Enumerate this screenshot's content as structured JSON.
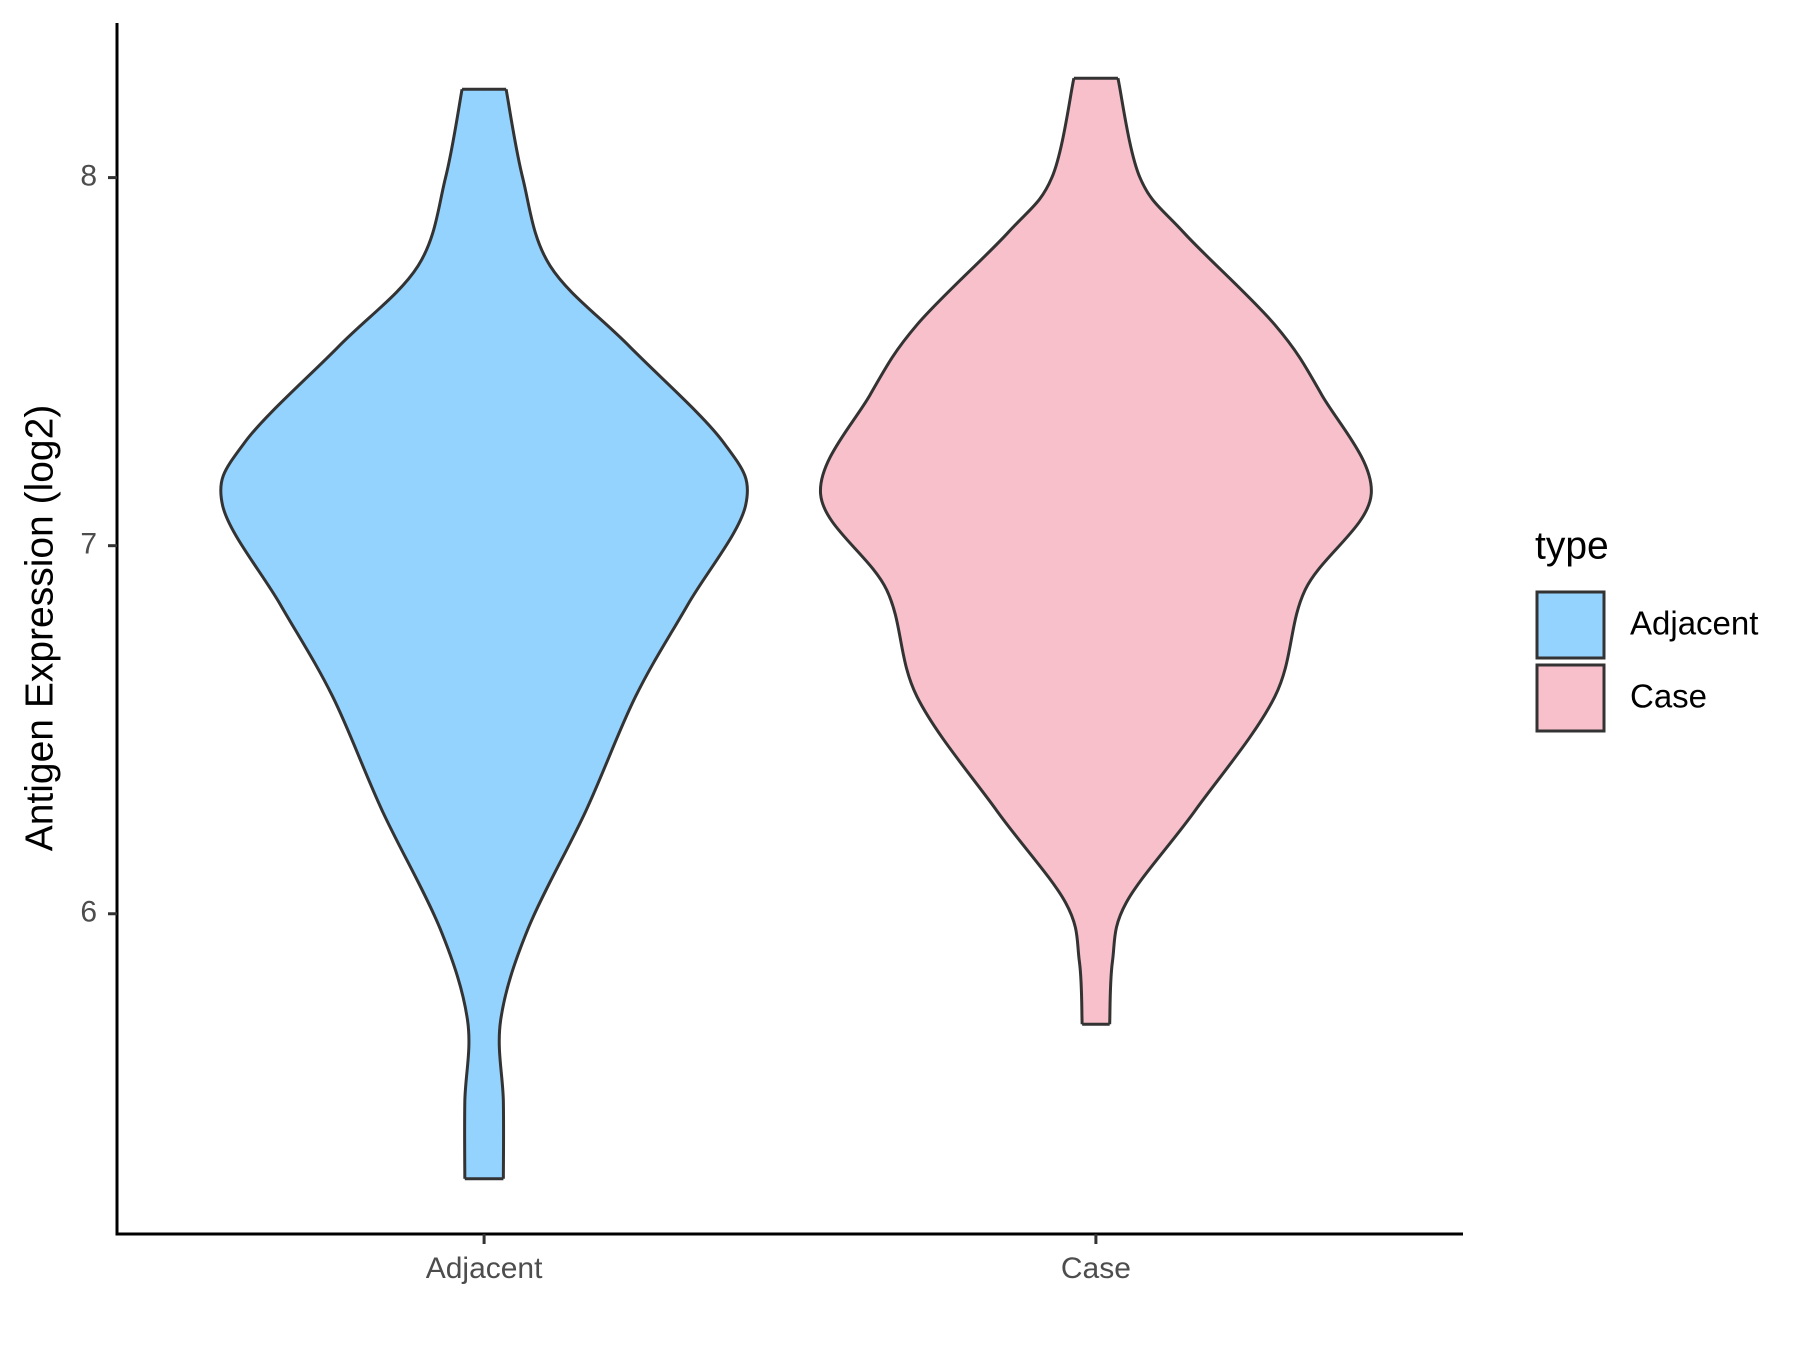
{
  "chart_data": {
    "type": "violin",
    "y_label": "Antigen Expression (log2)",
    "categories": [
      "Adjacent",
      "Case"
    ],
    "legend_title": "type",
    "series": [
      {
        "name": "Adjacent",
        "color": "#94d3fe",
        "y": [
          8.24,
          8.0,
          7.76,
          7.54,
          7.28,
          7.11,
          6.84,
          6.59,
          6.28,
          5.96,
          5.71,
          5.49,
          5.28
        ],
        "density": [
          0.08,
          0.14,
          0.24,
          0.53,
          0.87,
          0.95,
          0.74,
          0.55,
          0.37,
          0.16,
          0.06,
          0.07,
          0.07
        ]
      },
      {
        "name": "Case",
        "color": "#f7c0cb",
        "y": [
          8.27,
          8.0,
          7.85,
          7.6,
          7.41,
          7.14,
          6.88,
          6.59,
          6.28,
          6.03,
          5.87,
          5.7
        ],
        "density": [
          0.08,
          0.16,
          0.32,
          0.65,
          0.82,
          1.0,
          0.76,
          0.65,
          0.36,
          0.11,
          0.06,
          0.05
        ]
      }
    ],
    "ylim": [
      5.13,
      8.42
    ],
    "yticks": [
      6,
      7,
      8
    ],
    "grid": false,
    "legend_position": "right"
  }
}
